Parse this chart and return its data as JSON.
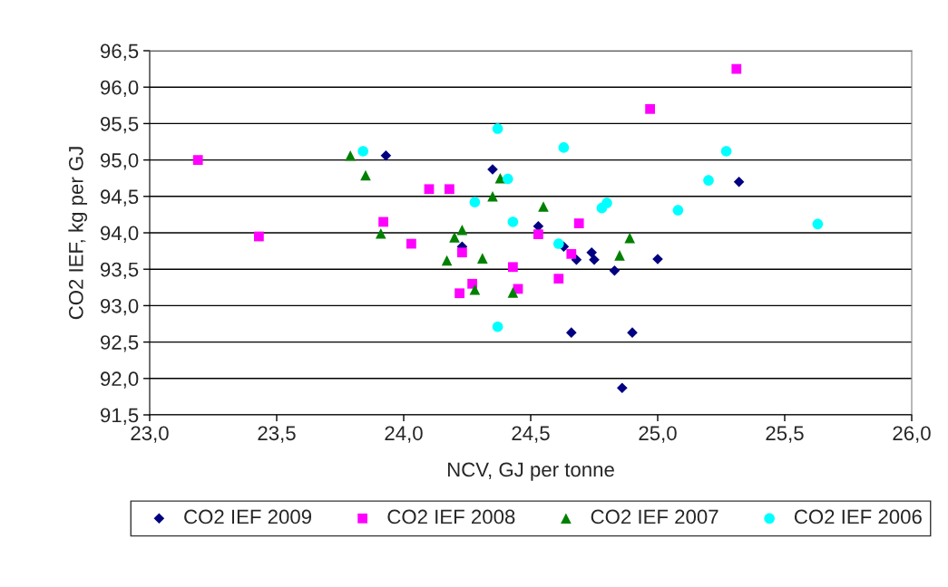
{
  "chart_data": {
    "type": "scatter",
    "xlabel": "NCV, GJ per tonne",
    "ylabel": "CO2 IEF, kg per GJ",
    "xlim": [
      23.0,
      26.0
    ],
    "ylim": [
      91.5,
      96.5
    ],
    "xticks": [
      {
        "value": 23.0,
        "label": "23,0"
      },
      {
        "value": 23.5,
        "label": "23,5"
      },
      {
        "value": 24.0,
        "label": "24,0"
      },
      {
        "value": 24.5,
        "label": "24,5"
      },
      {
        "value": 25.0,
        "label": "25,0"
      },
      {
        "value": 25.5,
        "label": "25,5"
      },
      {
        "value": 26.0,
        "label": "26,0"
      }
    ],
    "yticks": [
      {
        "value": 91.5,
        "label": "91,5"
      },
      {
        "value": 92.0,
        "label": "92,0"
      },
      {
        "value": 92.5,
        "label": "92,5"
      },
      {
        "value": 93.0,
        "label": "93,0"
      },
      {
        "value": 93.5,
        "label": "93,5"
      },
      {
        "value": 94.0,
        "label": "94,0"
      },
      {
        "value": 94.5,
        "label": "94,5"
      },
      {
        "value": 95.0,
        "label": "95,0"
      },
      {
        "value": 95.5,
        "label": "95,5"
      },
      {
        "value": 96.0,
        "label": "96,0"
      },
      {
        "value": 96.5,
        "label": "96,5"
      }
    ],
    "grid": "y",
    "legend": "bottom",
    "series": [
      {
        "name": "CO2 IEF 2009",
        "color": "#000080",
        "marker": "diamond",
        "x": [
          23.93,
          24.35,
          24.53,
          24.23,
          24.63,
          24.68,
          24.74,
          24.75,
          24.83,
          25.0,
          24.66,
          24.9,
          24.86,
          25.32
        ],
        "values": [
          95.06,
          94.87,
          94.09,
          93.81,
          93.81,
          93.63,
          93.73,
          93.63,
          93.48,
          93.64,
          92.63,
          92.63,
          91.87,
          94.7
        ]
      },
      {
        "name": "CO2 IEF 2008",
        "color": "#ff00ff",
        "marker": "square",
        "x": [
          23.19,
          23.43,
          23.92,
          24.03,
          24.1,
          24.18,
          24.23,
          24.27,
          24.22,
          24.43,
          24.45,
          24.53,
          24.69,
          24.66,
          24.61,
          25.31,
          24.97
        ],
        "values": [
          95.0,
          93.95,
          94.15,
          93.85,
          94.6,
          94.6,
          93.73,
          93.3,
          93.17,
          93.53,
          93.23,
          93.98,
          94.13,
          93.71,
          93.37,
          96.25,
          95.7
        ]
      },
      {
        "name": "CO2 IEF 2007",
        "color": "#008000",
        "marker": "triangle",
        "x": [
          23.79,
          23.85,
          23.91,
          24.38,
          24.35,
          24.55,
          24.23,
          24.2,
          24.17,
          24.31,
          24.28,
          24.43,
          24.89,
          24.85
        ],
        "values": [
          95.06,
          94.79,
          93.99,
          94.75,
          94.5,
          94.36,
          94.04,
          93.94,
          93.62,
          93.65,
          93.22,
          93.18,
          93.93,
          93.69
        ]
      },
      {
        "name": "CO2 IEF 2006",
        "color": "#00ffff",
        "marker": "circle",
        "x": [
          23.84,
          24.37,
          24.63,
          24.41,
          24.28,
          24.43,
          24.8,
          24.78,
          24.61,
          24.37,
          25.27,
          25.2,
          25.08,
          25.63
        ],
        "values": [
          95.12,
          95.43,
          95.17,
          94.74,
          94.42,
          94.15,
          94.41,
          94.34,
          93.85,
          92.71,
          95.12,
          94.72,
          94.31,
          94.12
        ]
      }
    ]
  }
}
